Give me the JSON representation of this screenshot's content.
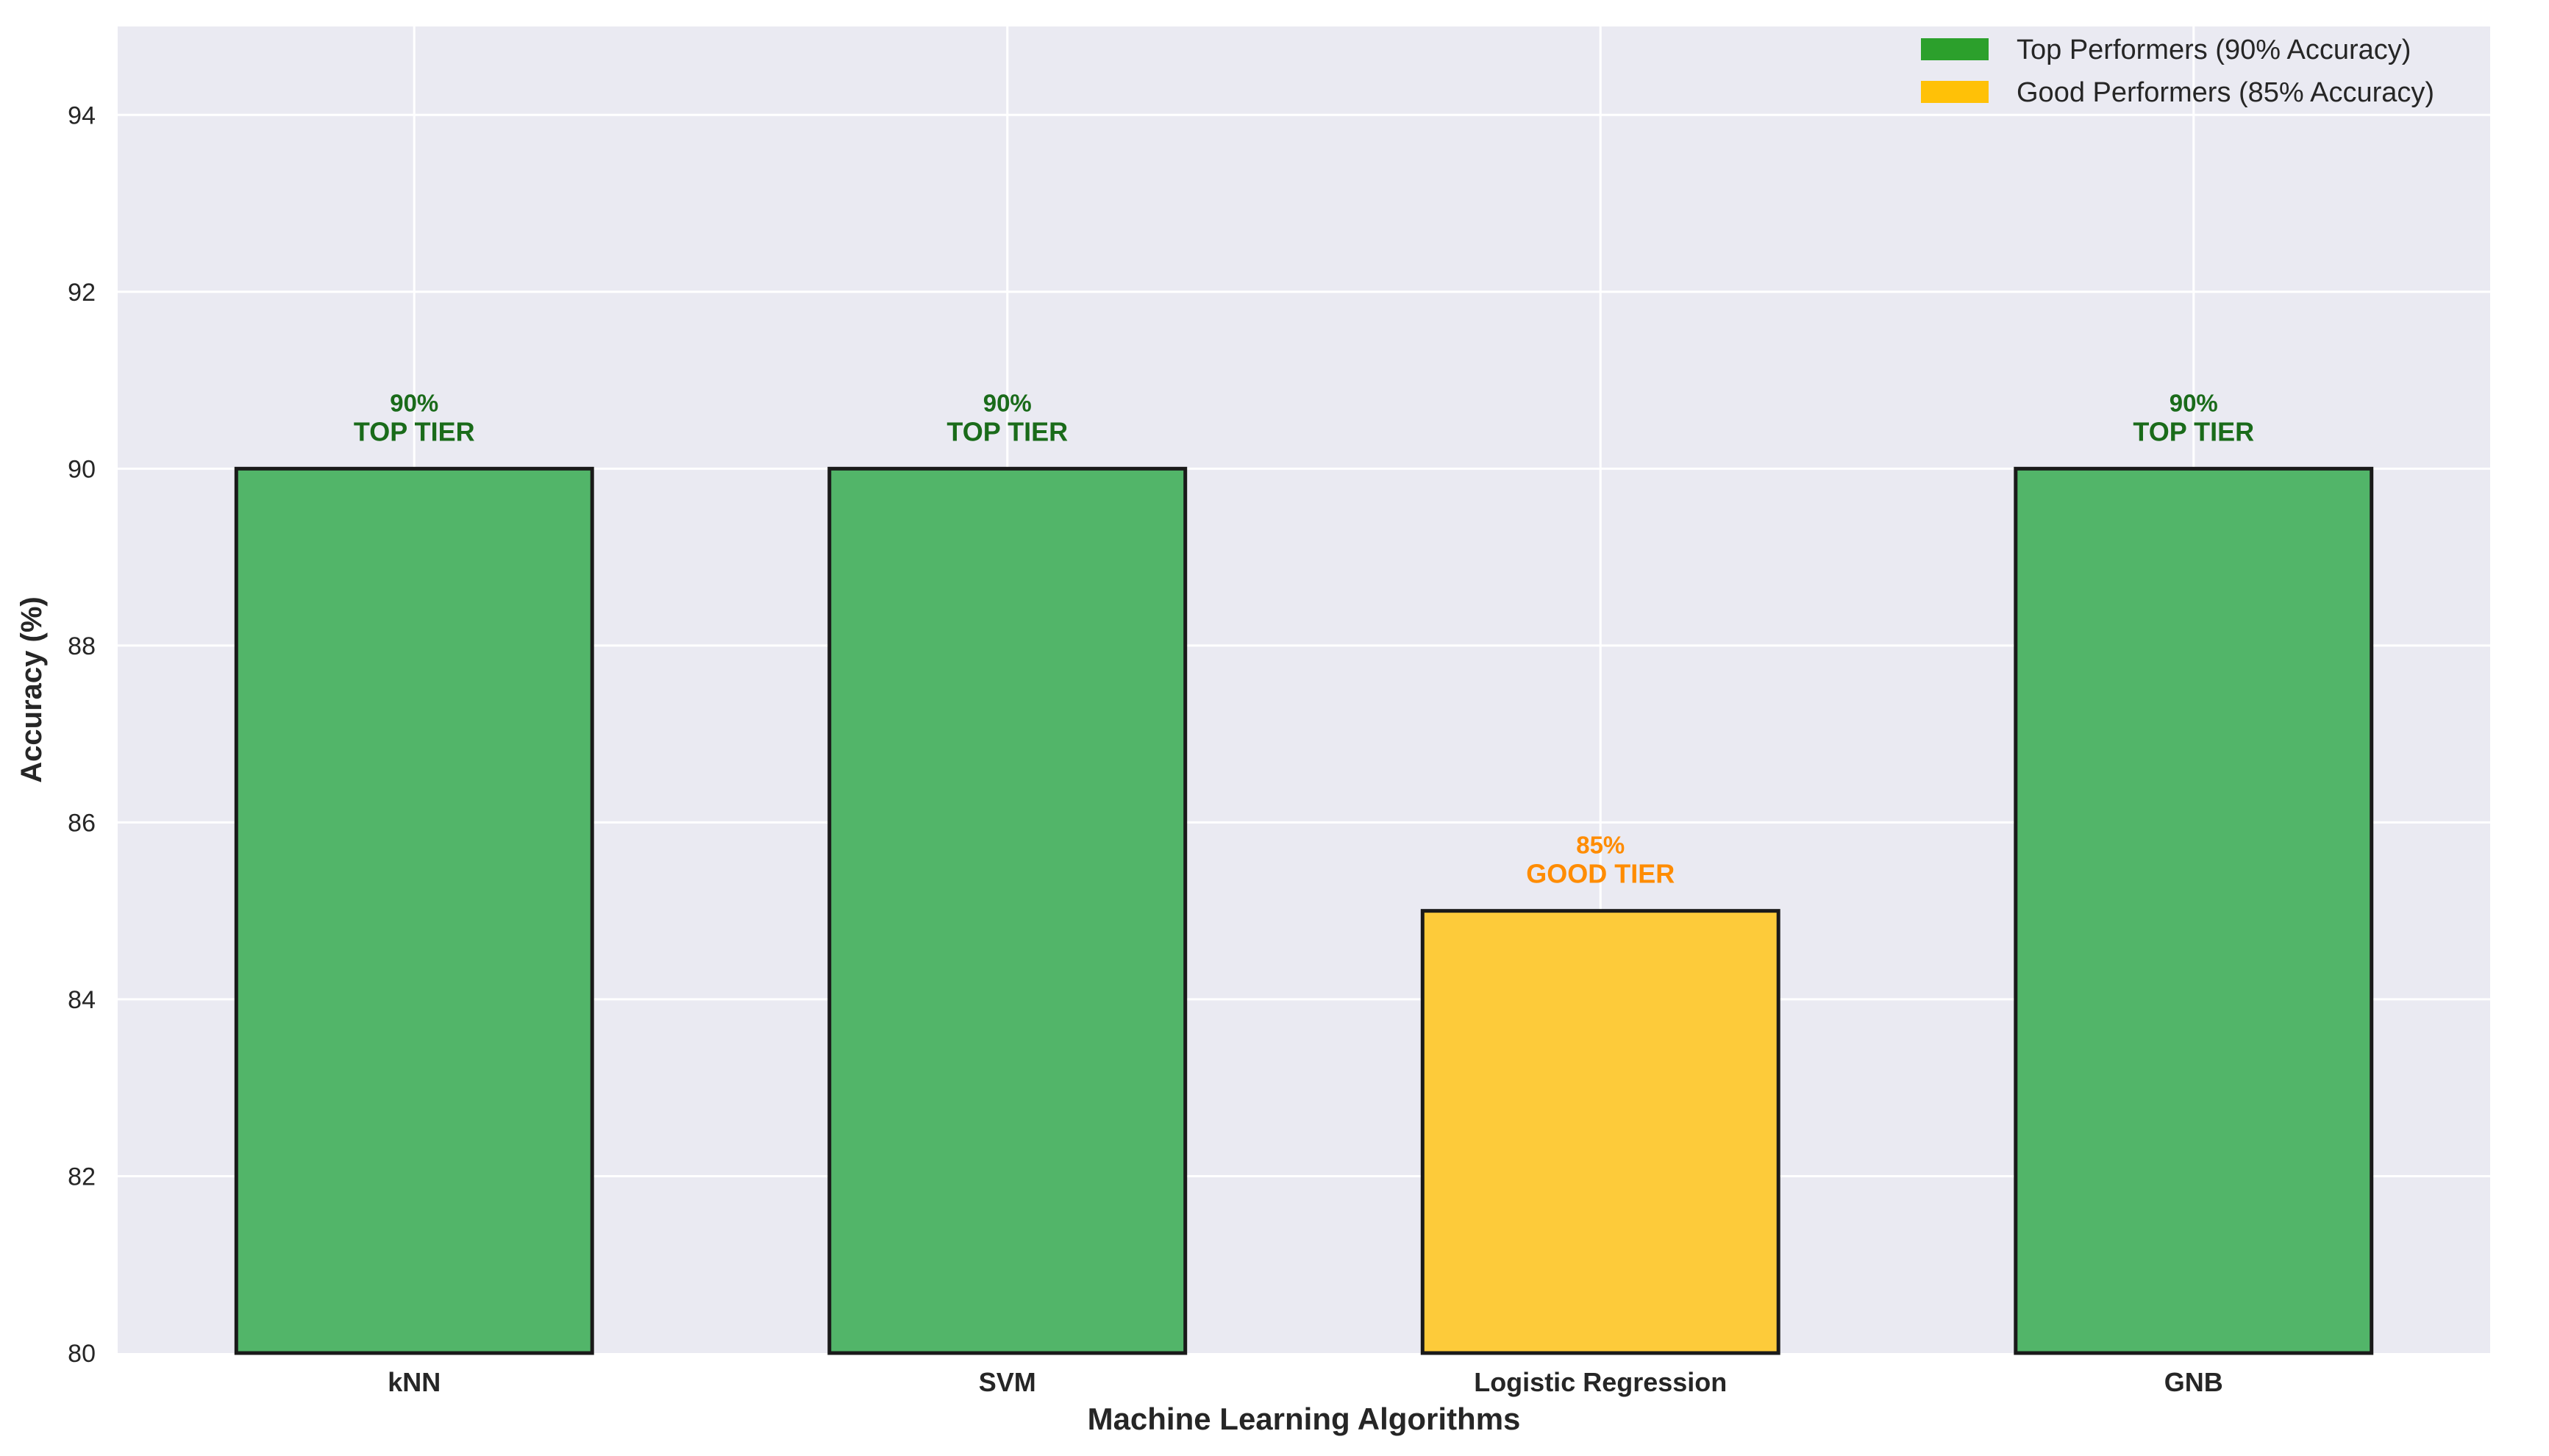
{
  "chart_data": {
    "type": "bar",
    "title": "",
    "xlabel": "Machine Learning Algorithms",
    "ylabel": "Accuracy (%)",
    "ylim": [
      80,
      95
    ],
    "yticks": [
      80,
      82,
      84,
      86,
      88,
      90,
      92,
      94
    ],
    "grid": true,
    "legend_position": "top-right",
    "categories": [
      "kNN",
      "SVM",
      "Logistic Regression",
      "GNB"
    ],
    "values": [
      90,
      90,
      85,
      90
    ],
    "tiers": [
      "top",
      "top",
      "good",
      "top"
    ],
    "bar_labels": [
      {
        "value": "90%",
        "tier": "TOP TIER"
      },
      {
        "value": "90%",
        "tier": "TOP TIER"
      },
      {
        "value": "85%",
        "tier": "GOOD TIER"
      },
      {
        "value": "90%",
        "tier": "TOP TIER"
      }
    ],
    "legend": [
      {
        "key": "top",
        "label": "Top Performers (90% Accuracy)",
        "color": "#2ca02c"
      },
      {
        "key": "good",
        "label": "Good Performers (85% Accuracy)",
        "color": "#ffc107"
      }
    ],
    "colors": {
      "top_fill": "#52b569",
      "good_fill": "#fdcb3a",
      "top_label": "#1a6b1a",
      "good_label": "#ff8c00",
      "plot_background": "#eaeaf2",
      "grid": "#ffffff",
      "bar_edge": "#1a1a1a"
    }
  }
}
